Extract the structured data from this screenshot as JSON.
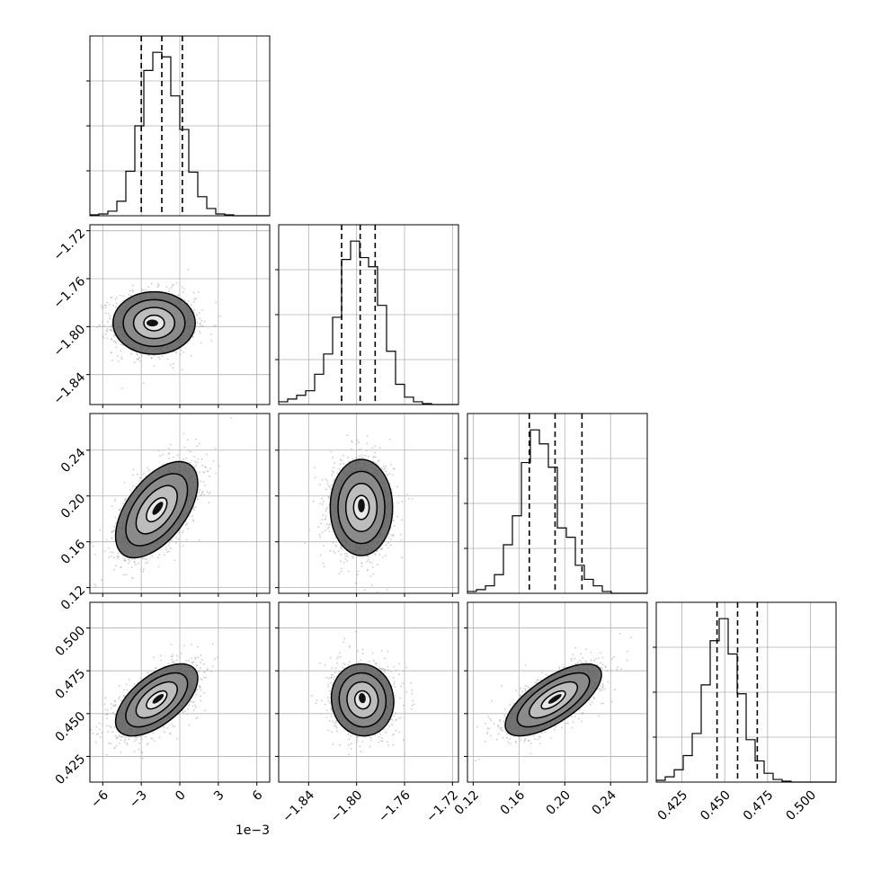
{
  "chart_data": {
    "type": "corner",
    "grid": true,
    "colors": {
      "line": "#000000",
      "grid": "#b0b0b0",
      "scatter": "#b5b5b5",
      "background": "#ffffff"
    },
    "parameters": [
      {
        "axis_range": [
          -7.0,
          7.0
        ],
        "ticks": [
          -6,
          -3,
          0,
          3,
          6
        ],
        "tick_labels": [
          "−6",
          "−3",
          "0",
          "3",
          "6"
        ],
        "axis_offset_label": "1e−3",
        "offset_scale": 0.001
      },
      {
        "axis_range": [
          -1.865,
          -1.715
        ],
        "ticks": [
          -1.84,
          -1.8,
          -1.76,
          -1.72
        ],
        "tick_labels": [
          "−1.84",
          "−1.80",
          "−1.76",
          "−1.72"
        ]
      },
      {
        "axis_range": [
          0.115,
          0.272
        ],
        "ticks": [
          0.12,
          0.16,
          0.2,
          0.24
        ],
        "tick_labels": [
          "0.12",
          "0.16",
          "0.20",
          "0.24"
        ]
      },
      {
        "axis_range": [
          0.41,
          0.515
        ],
        "ticks": [
          0.425,
          0.45,
          0.475,
          0.5
        ],
        "tick_labels": [
          "0.425",
          "0.450",
          "0.475",
          "0.500"
        ]
      }
    ],
    "histograms": [
      {
        "param": 0,
        "bin_edges": [
          -7.0,
          -6.3,
          -5.6,
          -4.9,
          -4.2,
          -3.5,
          -2.8,
          -2.1,
          -1.4,
          -0.7,
          0.0,
          0.7,
          1.4,
          2.1,
          2.8,
          3.5,
          4.2,
          4.9,
          5.6,
          6.3,
          7.0
        ],
        "counts": [
          1,
          2,
          5,
          16,
          49,
          99,
          160,
          180,
          175,
          132,
          95,
          48,
          21,
          8,
          2,
          1,
          0,
          0,
          0,
          0
        ],
        "quantiles": [
          -3.0,
          -1.4,
          0.2
        ]
      },
      {
        "param": 1,
        "bin_edges": [
          -1.865,
          -1.8575,
          -1.85,
          -1.8425,
          -1.835,
          -1.8275,
          -1.82,
          -1.8125,
          -1.805,
          -1.7975,
          -1.79,
          -1.7825,
          -1.775,
          -1.7675,
          -1.76,
          -1.7525,
          -1.745,
          -1.7375,
          -1.73,
          -1.7225,
          -1.715
        ],
        "counts": [
          3,
          6,
          10,
          15,
          33,
          55,
          95,
          158,
          178,
          160,
          150,
          108,
          58,
          22,
          8,
          3,
          1,
          0,
          0,
          0
        ],
        "quantiles": [
          -1.8125,
          -1.797,
          -1.7845
        ]
      },
      {
        "param": 2,
        "bin_edges": [
          0.115,
          0.12285,
          0.1307,
          0.13855,
          0.1464,
          0.15425,
          0.1621,
          0.16995,
          0.1778,
          0.18565,
          0.1935,
          0.20135,
          0.2092,
          0.21705,
          0.2249,
          0.23275,
          0.2406,
          0.24845,
          0.2563,
          0.26415,
          0.272
        ],
        "counts": [
          2,
          4,
          8,
          20,
          52,
          83,
          140,
          175,
          160,
          135,
          70,
          60,
          30,
          15,
          8,
          2,
          0,
          0,
          0,
          0
        ],
        "quantiles": [
          0.169,
          0.1915,
          0.215
        ]
      },
      {
        "param": 3,
        "bin_edges": [
          0.41,
          0.41525,
          0.4205,
          0.42575,
          0.431,
          0.43625,
          0.4415,
          0.44675,
          0.452,
          0.45725,
          0.4625,
          0.46775,
          0.473,
          0.47825,
          0.4835,
          0.48875,
          0.494,
          0.49925,
          0.5045,
          0.50975,
          0.515
        ],
        "counts": [
          2,
          6,
          14,
          30,
          55,
          110,
          160,
          185,
          145,
          100,
          48,
          24,
          10,
          3,
          1,
          0,
          0,
          0,
          0,
          0
        ],
        "quantiles": [
          0.4455,
          0.4575,
          0.469
        ]
      }
    ],
    "pairs": [
      {
        "x": 0,
        "y": 1,
        "mean": [
          -2.0,
          -1.797
        ],
        "sd": [
          1.6,
          0.013
        ],
        "corr": 0.0
      },
      {
        "x": 0,
        "y": 2,
        "mean": [
          -1.8,
          0.188
        ],
        "sd": [
          1.6,
          0.021
        ],
        "corr": 0.55
      },
      {
        "x": 1,
        "y": 2,
        "mean": [
          -1.796,
          0.19
        ],
        "sd": [
          0.013,
          0.021
        ],
        "corr": 0.0
      },
      {
        "x": 0,
        "y": 3,
        "mean": [
          -1.8,
          0.458
        ],
        "sd": [
          1.6,
          0.0105
        ],
        "corr": 0.6
      },
      {
        "x": 1,
        "y": 3,
        "mean": [
          -1.795,
          0.458
        ],
        "sd": [
          0.013,
          0.0105
        ],
        "corr": -0.05
      },
      {
        "x": 2,
        "y": 3,
        "mean": [
          0.19,
          0.458
        ],
        "sd": [
          0.021,
          0.0105
        ],
        "corr": 0.7
      }
    ],
    "contour_levels_sigma": [
      0.5,
      1.0,
      1.5,
      2.0
    ]
  }
}
